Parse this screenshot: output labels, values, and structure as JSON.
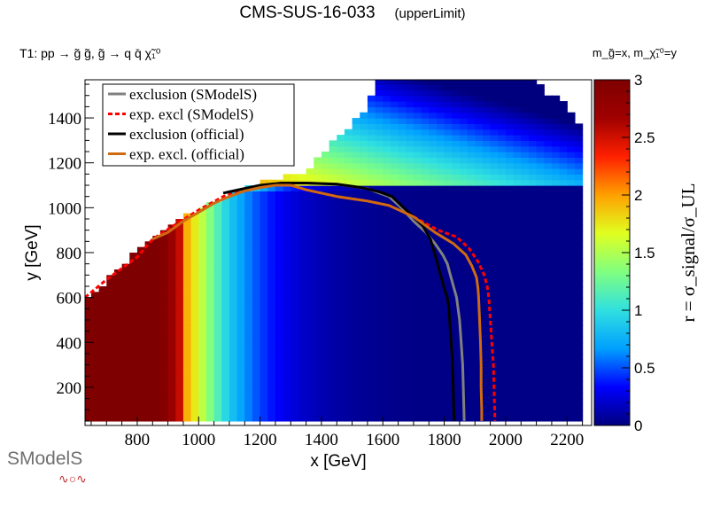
{
  "header": {
    "title": "CMS-SUS-16-033",
    "subtitle": "(upperLimit)",
    "process": "T1: pp → g̃ g̃, g̃ → q q̄ χ̃₁⁰",
    "mass_note": "m_g̃=x, m_χ̃₁⁰=y"
  },
  "logo": {
    "text": "SModelS"
  },
  "chart_data": {
    "type": "heatmap",
    "title": "CMS-SUS-16-033 (upperLimit)",
    "xlabel": "x [GeV]",
    "ylabel": "y [GeV]",
    "zlabel": "r = σ_signal/σ_UL",
    "xlim": [
      630,
      2280
    ],
    "ylim": [
      30,
      1570
    ],
    "zlim": [
      0,
      3
    ],
    "x_ticks": [
      800,
      1000,
      1200,
      1400,
      1600,
      1800,
      2000,
      2200
    ],
    "y_ticks": [
      200,
      400,
      600,
      800,
      1000,
      1200,
      1400
    ],
    "z_ticks": [
      0,
      0.5,
      1,
      1.5,
      2,
      2.5,
      3
    ],
    "colormap": [
      "#00007f",
      "#0000ff",
      "#00a0ff",
      "#30e0e0",
      "#80ff80",
      "#e0ff20",
      "#ffa000",
      "#ff2000",
      "#a00000",
      "#7f0000"
    ],
    "grid": false,
    "legend_position": "top-left",
    "region": {
      "left_edge": [
        [
          625,
          50
        ],
        [
          625,
          560
        ],
        [
          650,
          600
        ],
        [
          850,
          860
        ],
        [
          1000,
          980
        ],
        [
          1100,
          1050
        ],
        [
          1200,
          1100
        ],
        [
          1350,
          1150
        ],
        [
          1450,
          1300
        ],
        [
          1550,
          1420
        ],
        [
          1575,
          1570
        ]
      ],
      "right_edge": [
        [
          2100,
          1570
        ],
        [
          2125,
          1500
        ],
        [
          2200,
          1450
        ],
        [
          2260,
          1300
        ],
        [
          2260,
          50
        ]
      ]
    },
    "series": [
      {
        "name": "exclusion (SModelS)",
        "color": "#808080",
        "style": "solid",
        "points": [
          [
            1270,
            1110
          ],
          [
            1350,
            1110
          ],
          [
            1450,
            1105
          ],
          [
            1550,
            1085
          ],
          [
            1620,
            1050
          ],
          [
            1660,
            1000
          ],
          [
            1700,
            940
          ],
          [
            1740,
            890
          ],
          [
            1770,
            840
          ],
          [
            1795,
            790
          ],
          [
            1810,
            750
          ],
          [
            1820,
            700
          ],
          [
            1830,
            650
          ],
          [
            1840,
            600
          ],
          [
            1845,
            550
          ],
          [
            1850,
            500
          ],
          [
            1855,
            400
          ],
          [
            1860,
            300
          ],
          [
            1862,
            200
          ],
          [
            1864,
            100
          ],
          [
            1865,
            50
          ]
        ]
      },
      {
        "name": "exp. excl (SModelS)",
        "color": "#ff0000",
        "style": "dashed",
        "points": [
          [
            630,
            600
          ],
          [
            700,
            680
          ],
          [
            800,
            780
          ],
          [
            850,
            860
          ],
          [
            930,
            930
          ],
          [
            1000,
            990
          ],
          [
            1080,
            1050
          ],
          [
            1150,
            1080
          ],
          [
            1230,
            1100
          ],
          [
            1300,
            1100
          ],
          [
            1350,
            1080
          ],
          [
            1450,
            1050
          ],
          [
            1550,
            1030
          ],
          [
            1620,
            1010
          ],
          [
            1700,
            960
          ],
          [
            1780,
            900
          ],
          [
            1840,
            870
          ],
          [
            1880,
            820
          ],
          [
            1910,
            760
          ],
          [
            1930,
            700
          ],
          [
            1940,
            650
          ],
          [
            1945,
            600
          ],
          [
            1950,
            500
          ],
          [
            1955,
            400
          ],
          [
            1960,
            300
          ],
          [
            1962,
            200
          ],
          [
            1964,
            100
          ],
          [
            1965,
            50
          ]
        ]
      },
      {
        "name": "exclusion (official)",
        "color": "#000000",
        "style": "solid",
        "points": [
          [
            1080,
            1065
          ],
          [
            1130,
            1080
          ],
          [
            1200,
            1100
          ],
          [
            1270,
            1110
          ],
          [
            1350,
            1110
          ],
          [
            1450,
            1105
          ],
          [
            1530,
            1090
          ],
          [
            1590,
            1070
          ],
          [
            1630,
            1050
          ],
          [
            1660,
            1010
          ],
          [
            1700,
            960
          ],
          [
            1730,
            920
          ],
          [
            1755,
            860
          ],
          [
            1770,
            790
          ],
          [
            1780,
            740
          ],
          [
            1790,
            690
          ],
          [
            1800,
            640
          ],
          [
            1810,
            600
          ],
          [
            1815,
            550
          ],
          [
            1820,
            450
          ],
          [
            1825,
            350
          ],
          [
            1828,
            250
          ],
          [
            1830,
            150
          ],
          [
            1832,
            50
          ]
        ]
      },
      {
        "name": "exp. excl. (official)",
        "color": "#d06a10",
        "style": "solid",
        "points": [
          [
            850,
            860
          ],
          [
            900,
            890
          ],
          [
            950,
            940
          ],
          [
            1000,
            980
          ],
          [
            1050,
            1020
          ],
          [
            1100,
            1050
          ],
          [
            1150,
            1075
          ],
          [
            1200,
            1090
          ],
          [
            1250,
            1100
          ],
          [
            1300,
            1100
          ],
          [
            1350,
            1080
          ],
          [
            1450,
            1050
          ],
          [
            1550,
            1030
          ],
          [
            1620,
            1010
          ],
          [
            1700,
            960
          ],
          [
            1770,
            890
          ],
          [
            1830,
            840
          ],
          [
            1870,
            790
          ],
          [
            1890,
            740
          ],
          [
            1905,
            690
          ],
          [
            1910,
            640
          ],
          [
            1912,
            600
          ],
          [
            1915,
            500
          ],
          [
            1918,
            400
          ],
          [
            1920,
            300
          ],
          [
            1920,
            200
          ],
          [
            1922,
            100
          ],
          [
            1922,
            50
          ]
        ]
      }
    ]
  }
}
